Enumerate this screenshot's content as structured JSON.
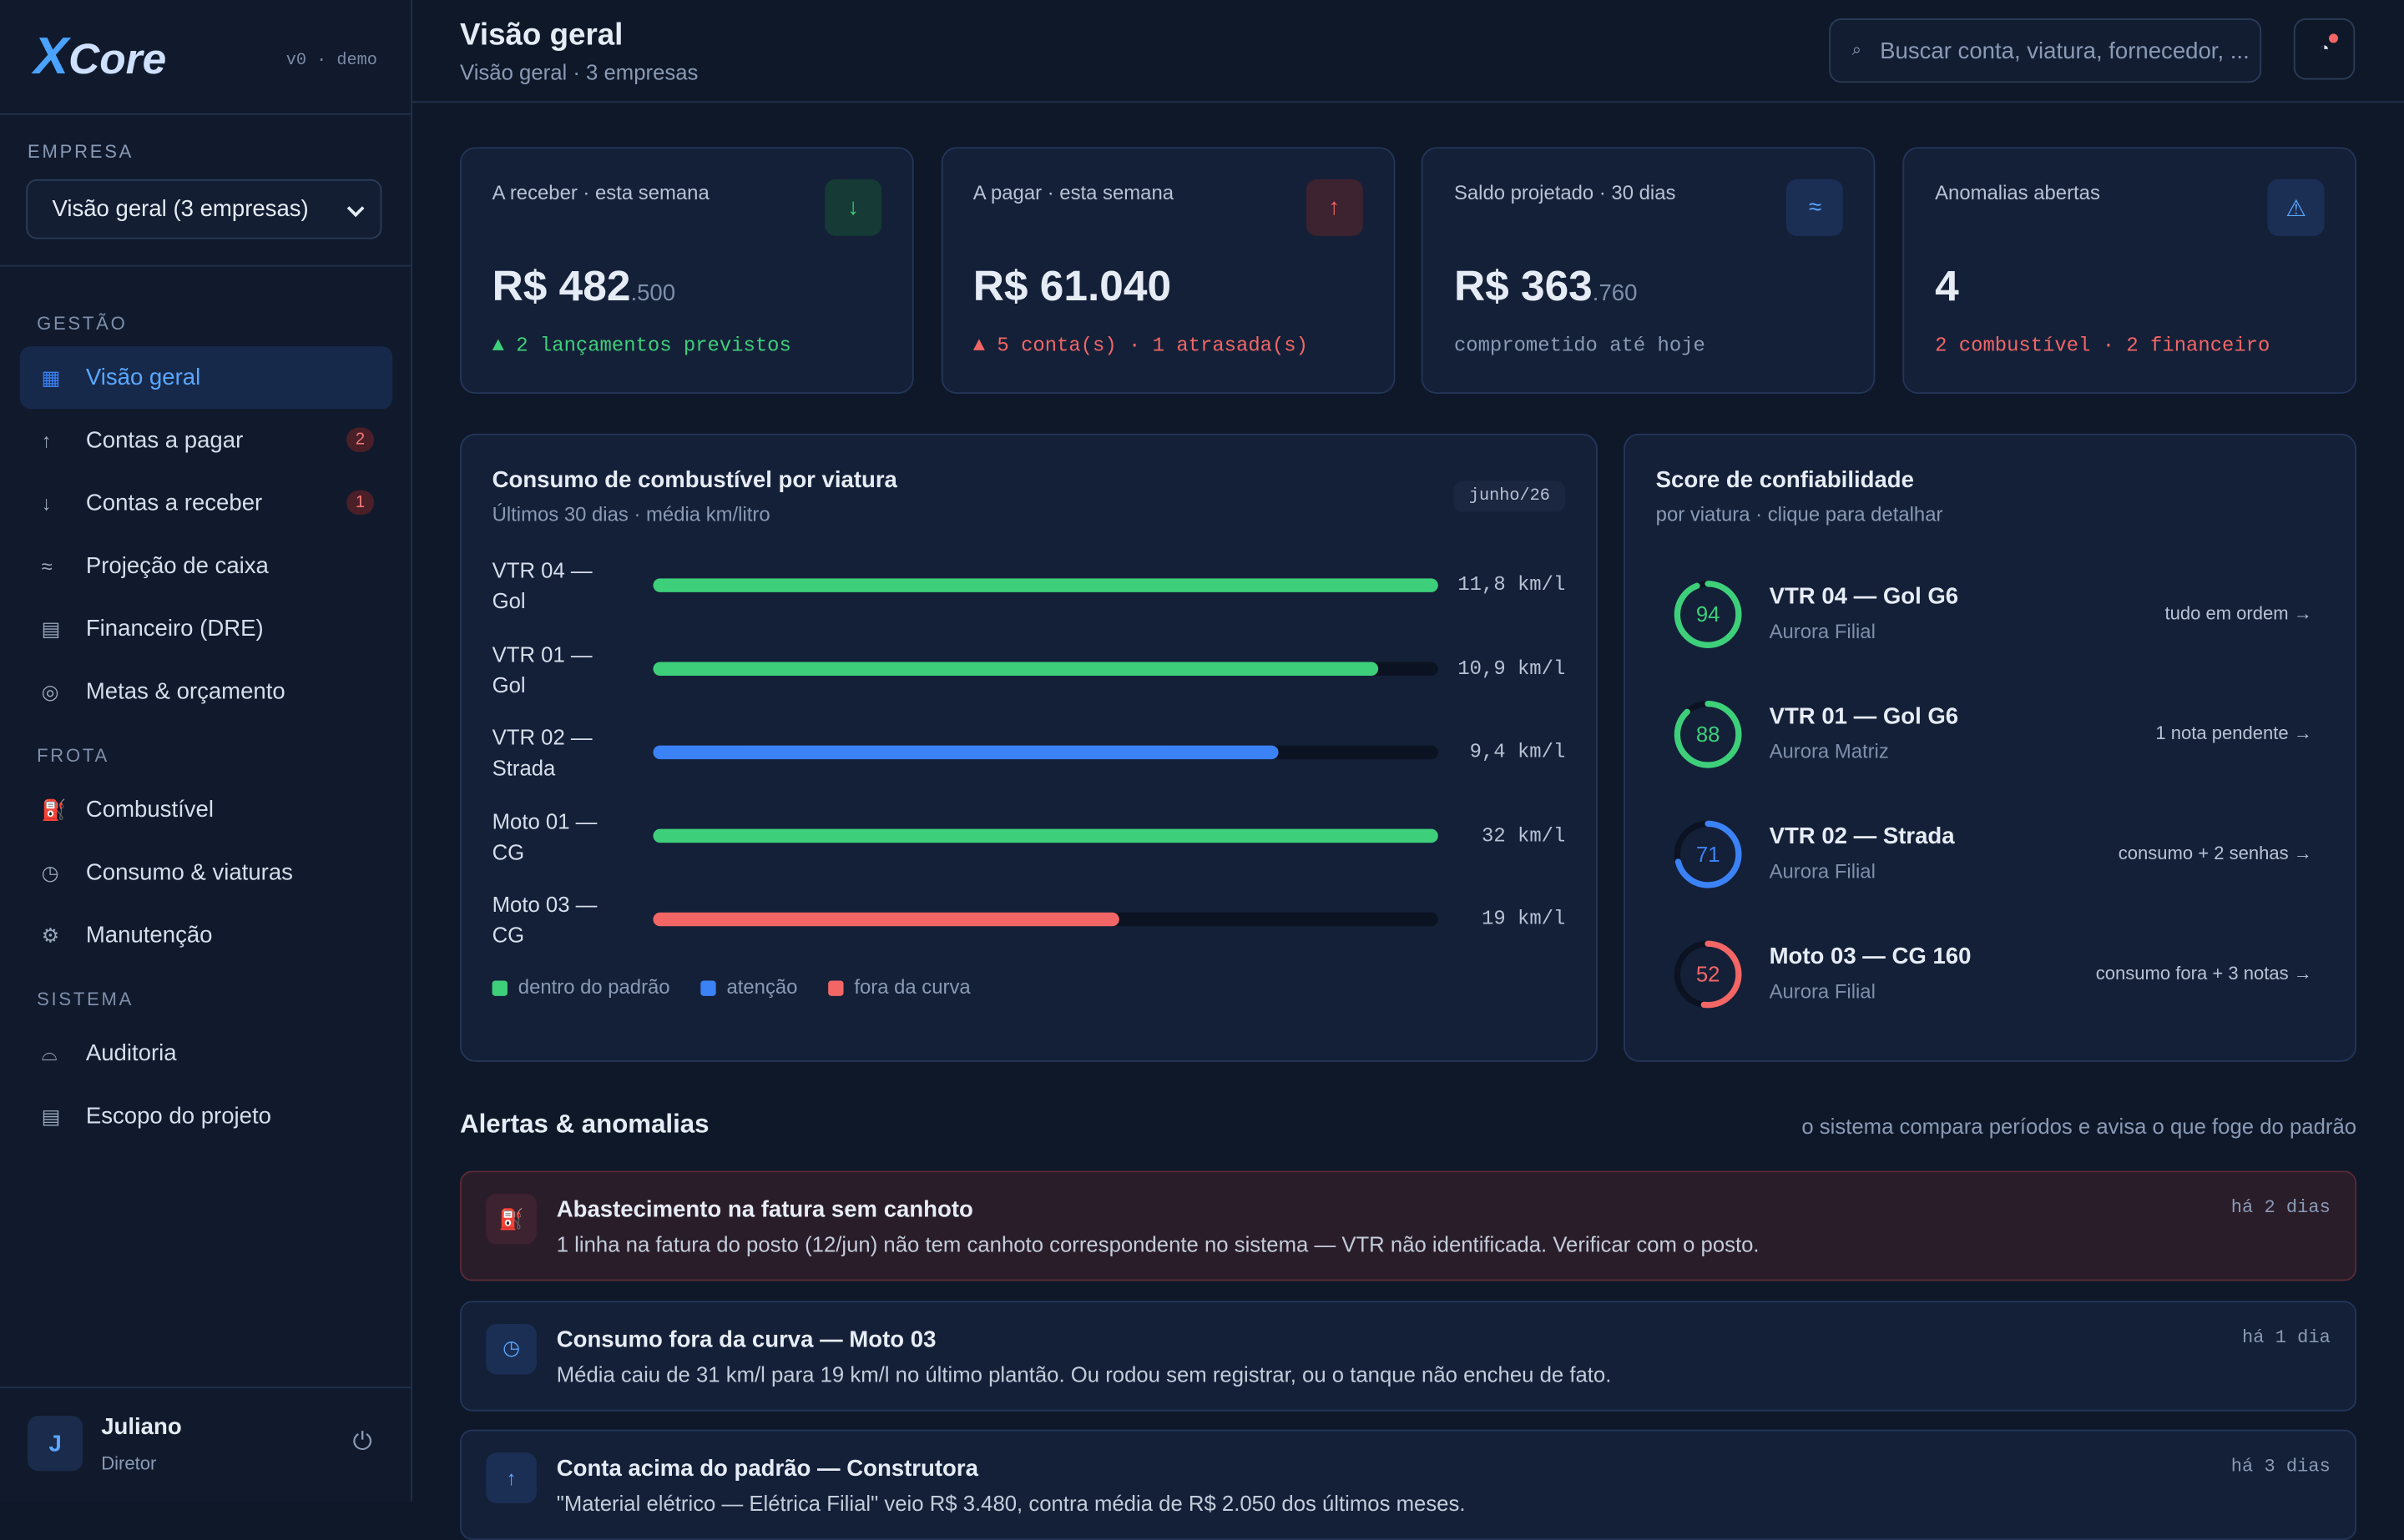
{
  "sidebar": {
    "logo_x": "X",
    "logo_text": "Core",
    "version": "v0 · demo",
    "company_label": "EMPRESA",
    "company_select": "Visão geral (3 empresas)",
    "sections": [
      {
        "title": "GESTÃO",
        "items": [
          {
            "icon": "▦",
            "label": "Visão geral",
            "active": true
          },
          {
            "icon": "↑",
            "label": "Contas a pagar",
            "badge": 2
          },
          {
            "icon": "↓",
            "label": "Contas a receber",
            "badge": 1
          },
          {
            "icon": "≈",
            "label": "Projeção de caixa"
          },
          {
            "icon": "▤",
            "label": "Financeiro (DRE)"
          },
          {
            "icon": "◎",
            "label": "Metas & orçamento"
          }
        ]
      },
      {
        "title": "FROTA",
        "items": [
          {
            "icon": "⛽",
            "label": "Combustível"
          },
          {
            "icon": "◷",
            "label": "Consumo & viaturas"
          },
          {
            "icon": "⚙",
            "label": "Manutenção"
          }
        ]
      },
      {
        "title": "SISTEMA",
        "items": [
          {
            "icon": "⌓",
            "label": "Auditoria"
          },
          {
            "icon": "▤",
            "label": "Escopo do projeto"
          }
        ]
      }
    ],
    "user": {
      "initial": "J",
      "name": "Juliano",
      "role": "Diretor",
      "logout": "⏻"
    }
  },
  "header": {
    "title": "Visão geral",
    "subtitle": "Visão geral · 3 empresas",
    "search_icon": "⌕",
    "search_placeholder": "Buscar conta, viatura, fornecedor, ...",
    "alert_icon": "◔"
  },
  "kpis": [
    {
      "label": "A receber · esta semana",
      "icon": "↓",
      "value": "R$ 482",
      "decimals": ".500",
      "note": "▲ 2 lançamentos previstos",
      "tone": "green"
    },
    {
      "label": "A pagar · esta semana",
      "icon": "↑",
      "value": "R$ 61.040",
      "note": "▲ 5 conta(s) · 1 atrasada(s)",
      "tone": "red"
    },
    {
      "label": "Saldo projetado · 30 dias",
      "icon": "≈",
      "value": "R$ 363",
      "decimals": ".760",
      "note": "comprometido até hoje",
      "tone": "blue"
    },
    {
      "label": "Anomalias abertas",
      "icon": "⚠",
      "value": "4",
      "note": "2 combustível · 2 financeiro",
      "tone": "blue",
      "note_tone": "red"
    }
  ],
  "fuel_chart": {
    "type": "bar",
    "title": "Consumo de combustível por viatura",
    "subtitle": "Últimos 30 dias · média km/litro",
    "period": "junho/26",
    "categories": [
      "VTR 04 — Gol",
      "VTR 01 — Gol",
      "VTR 02 — Strada",
      "Moto 01 — CG",
      "Moto 03 — CG"
    ],
    "values": [
      11.8,
      10.9,
      9.4,
      32,
      19
    ],
    "value_labels": [
      "11,8 km/l",
      "10,9 km/l",
      "9,4 km/l",
      "32 km/l",
      "19 km/l"
    ],
    "colors": [
      "#3ecf7a",
      "#3ecf7a",
      "#3b82f6",
      "#3ecf7a",
      "#f26666"
    ],
    "legend": [
      {
        "label": "dentro do padrão",
        "color": "#3ecf7a"
      },
      {
        "label": "atenção",
        "color": "#3b82f6"
      },
      {
        "label": "fora da curva",
        "color": "#f26666"
      }
    ]
  },
  "scores": {
    "title": "Score de confiabilidade",
    "subtitle": "por viatura · clique para detalhar",
    "items": [
      {
        "value": 94,
        "name": "VTR 04 — Gol G6",
        "place": "Aurora Filial",
        "action": "tudo em ordem →",
        "color": "#3ecf7a"
      },
      {
        "value": 88,
        "name": "VTR 01 — Gol G6",
        "place": "Aurora Matriz",
        "action": "1 nota pendente →",
        "color": "#3ecf7a"
      },
      {
        "value": 71,
        "name": "VTR 02 — Strada",
        "place": "Aurora Filial",
        "action": "consumo + 2 senhas →",
        "color": "#3b82f6"
      },
      {
        "value": 52,
        "name": "Moto 03 — CG 160",
        "place": "Aurora Filial",
        "action": "consumo fora + 3 notas →",
        "color": "#f26666"
      }
    ]
  },
  "alerts": {
    "title": "Alertas & anomalias",
    "note": "o sistema compara períodos e avisa o que foge do padrão",
    "items": [
      {
        "icon": "⛽",
        "title": "Abastecimento na fatura sem canhoto",
        "text": "1 linha na fatura do posto (12/jun) não tem canhoto correspondente no sistema — VTR não identificada. Verificar com o posto.",
        "time": "há 2 dias",
        "tone": "red"
      },
      {
        "icon": "◷",
        "title": "Consumo fora da curva — Moto 03",
        "text": "Média caiu de 31 km/l para 19 km/l no último plantão. Ou rodou sem registrar, ou o tanque não encheu de fato.",
        "time": "há 1 dia",
        "tone": "blue"
      },
      {
        "icon": "↑",
        "title": "Conta acima do padrão — Construtora",
        "text": "\"Material elétrico — Elétrica Filial\" veio R$ 3.480, contra média de R$ 2.050 dos últimos meses.",
        "time": "há 3 dias",
        "tone": "blue"
      }
    ]
  }
}
